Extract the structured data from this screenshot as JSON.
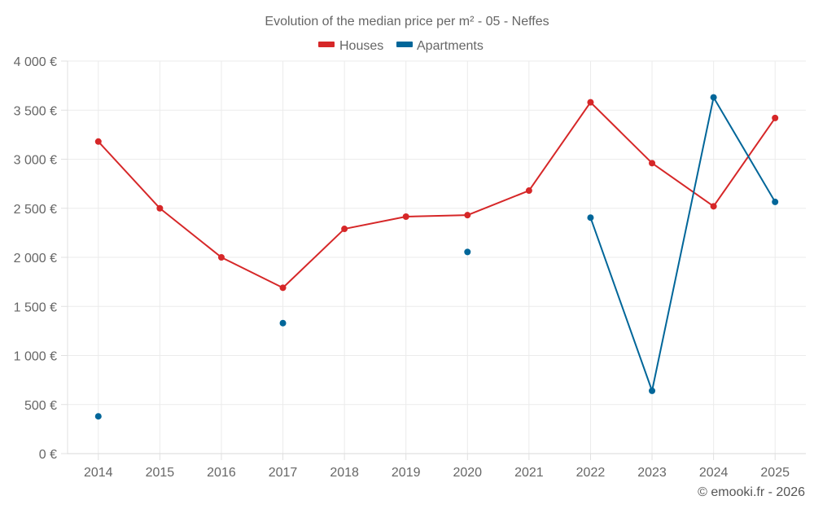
{
  "chart_data": {
    "type": "line",
    "title": "Evolution of the median price per m² - 05 - Neffes",
    "xlabel": "",
    "ylabel": "",
    "x": [
      "2014",
      "2015",
      "2016",
      "2017",
      "2018",
      "2019",
      "2020",
      "2021",
      "2022",
      "2023",
      "2024",
      "2025"
    ],
    "ylim": [
      0,
      4000
    ],
    "yticks": [
      0,
      500,
      1000,
      1500,
      2000,
      2500,
      3000,
      3500,
      4000
    ],
    "ytick_labels": [
      "0 €",
      "500 €",
      "1 000 €",
      "1 500 €",
      "2 000 €",
      "2 500 €",
      "3 000 €",
      "3 500 €",
      "4 000 €"
    ],
    "grid": true,
    "legend_position": "top-center",
    "series": [
      {
        "name": "Houses",
        "color": "#d62728",
        "values": [
          3180,
          2500,
          2000,
          1690,
          2290,
          2415,
          2430,
          2680,
          3580,
          2960,
          2520,
          3420
        ]
      },
      {
        "name": "Apartments",
        "color": "#006699",
        "values": [
          380,
          null,
          null,
          1330,
          null,
          null,
          2055,
          null,
          2405,
          640,
          3630,
          2565
        ]
      }
    ],
    "credit": "© emooki.fr - 2026"
  }
}
